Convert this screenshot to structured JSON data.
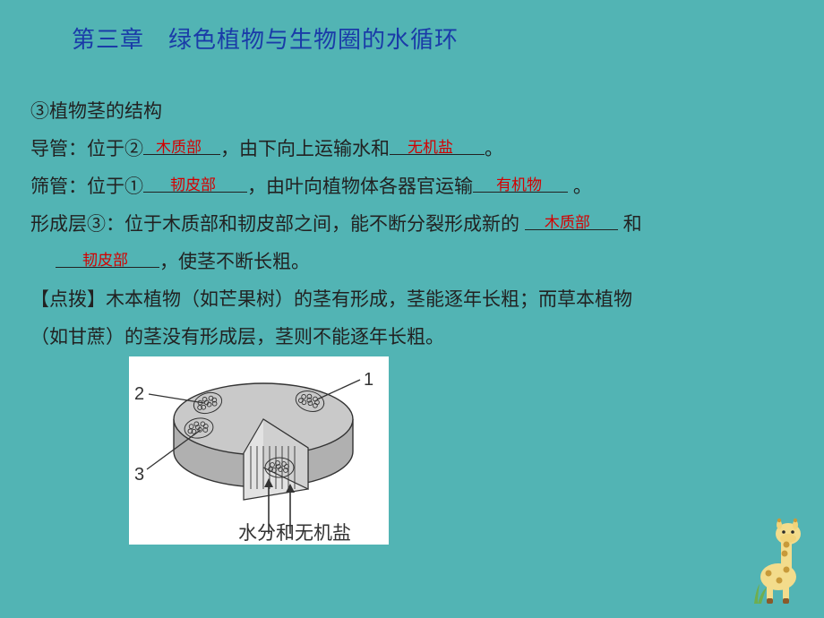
{
  "title": "第三章　绿色植物与生物圈的水循环",
  "line1": "③植物茎的结构",
  "line2a": "导管：位于②",
  "ans2a": "木质部",
  "line2b": "，由下向上运输水和",
  "ans2b": "无机盐",
  "line2c": "。",
  "line3a": "筛管：位于①",
  "ans3a": "韧皮部",
  "line3b": "，由叶向植物体各器官运输",
  "ans3b": "有机物",
  "line3c": " 。",
  "line4a": "形成层③：位于木质部和韧皮部之间，能不断分裂形成新的 ",
  "ans4a": "木质部",
  "line4b": " 和",
  "ans5a": "韧皮部",
  "line5b": "，使茎不断长粗。",
  "line6": "【点拨】木本植物（如芒果树）的茎有形成，茎能逐年长粗；而草本植物",
  "line7": "（如甘蔗）的茎没有形成层，茎则不能逐年长粗。",
  "diagram": {
    "label1": "1",
    "label2": "2",
    "label3": "3",
    "caption": "水分和无机盐",
    "bg": "#ffffff",
    "fill": "#c9c9c9",
    "mid": "#b0b0b0",
    "stroke": "#333333",
    "label_fontsize": 20,
    "caption_fontsize": 21
  },
  "giraffe": {
    "body": "#f3dc8c",
    "spots": "#c89a3a",
    "ear": "#f2d47a",
    "hoof": "#8a5a2a"
  },
  "blank_widths": {
    "b2a": 86,
    "b2b": 106,
    "b3a": 116,
    "b3b": 106,
    "b4a": 104,
    "b5a": 116
  }
}
